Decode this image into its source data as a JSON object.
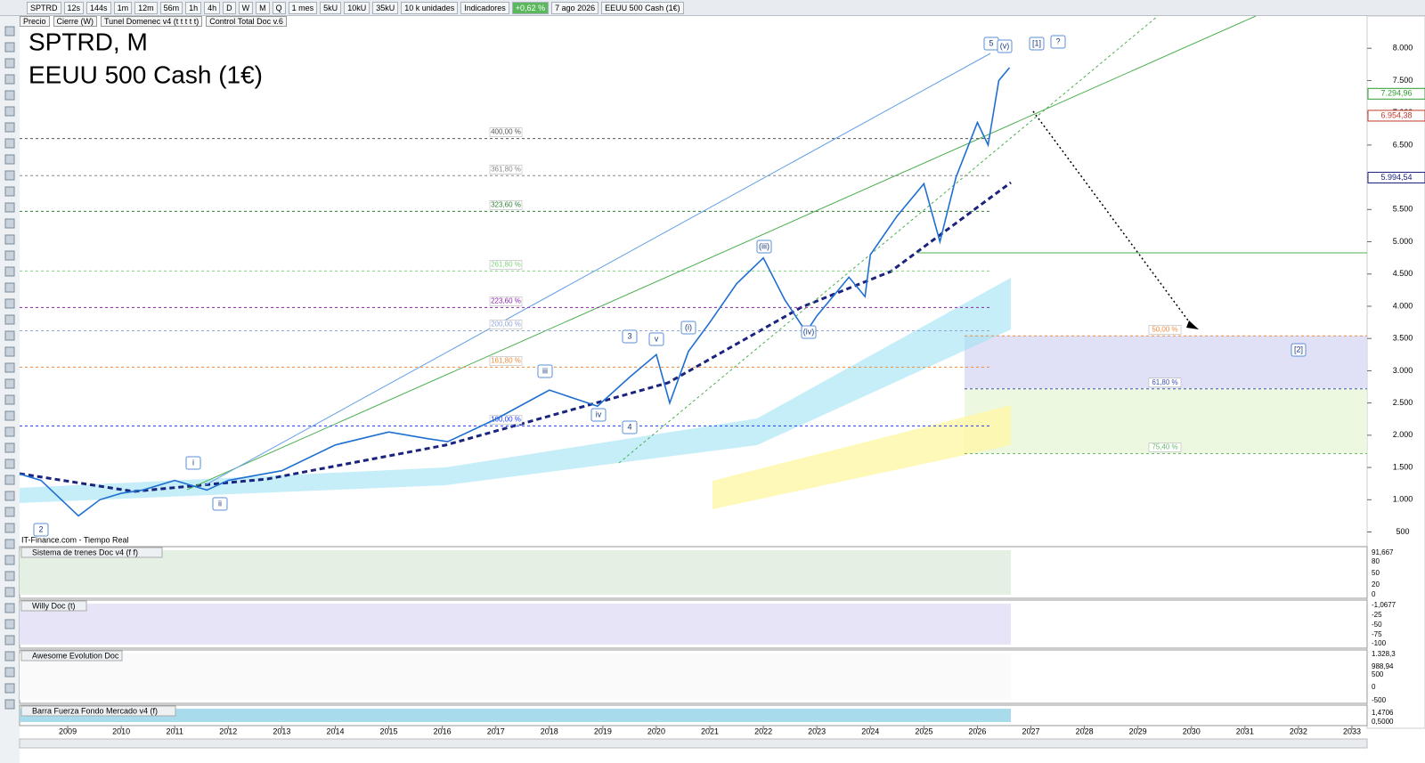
{
  "toolbar": {
    "symbol": "SPTRD",
    "timeframes": [
      "12s",
      "144s",
      "1m",
      "12m",
      "56m",
      "1h",
      "4h",
      "D",
      "W",
      "M",
      "Q"
    ],
    "period": "1 mes",
    "units": [
      "5kU",
      "10kU",
      "35kU"
    ],
    "unit_select": "10 k unidades",
    "indicators": "Indicadores",
    "change": "+0,62 %",
    "date": "7 ago 2026",
    "instrument": "EEUU 500 Cash (1€)"
  },
  "legend": [
    "Precio",
    "Cierre (W)",
    "Tunel Domenec v4 (t t t t t)",
    "Control Total Doc v.6"
  ],
  "title": {
    "symbol": "SPTRD, M",
    "name": "EEUU 500 Cash (1€)"
  },
  "source": "IT-Finance.com - Tiempo Real",
  "price_axis": {
    "ylim": [
      300,
      8500
    ],
    "yticks": [
      {
        "value": 8000,
        "label": "8.000"
      },
      {
        "value": 7500,
        "label": "7.500"
      },
      {
        "value": 7000,
        "label": "7.000"
      },
      {
        "value": 6500,
        "label": "6.500"
      },
      {
        "value": 6000,
        "label": "6.000"
      },
      {
        "value": 5500,
        "label": "5.500"
      },
      {
        "value": 5000,
        "label": "5.000"
      },
      {
        "value": 4500,
        "label": "4.500"
      },
      {
        "value": 4000,
        "label": "4.000"
      },
      {
        "value": 3500,
        "label": "3.500"
      },
      {
        "value": 3000,
        "label": "3.000"
      },
      {
        "value": 2500,
        "label": "2.500"
      },
      {
        "value": 2000,
        "label": "2.000"
      },
      {
        "value": 1500,
        "label": "1.500"
      },
      {
        "value": 1000,
        "label": "1.000"
      },
      500
    ]
  },
  "last_prices": [
    {
      "value": 7294.96,
      "label": "7.294,96",
      "color": "#2e9a2e"
    },
    {
      "value": 6954.38,
      "label": "6.954,38",
      "color": "#c0392b"
    },
    {
      "value": 5994.54,
      "label": "5.994,54",
      "color": "#1a237e"
    }
  ],
  "time_axis": {
    "xlim": [
      2008.1,
      2033.2
    ],
    "xticks": [
      2009,
      2010,
      2011,
      2012,
      2013,
      2014,
      2015,
      2016,
      2017,
      2018,
      2019,
      2020,
      2021,
      2022,
      2023,
      2024,
      2025,
      2026,
      2027,
      2028,
      2029,
      2030,
      2031,
      2032,
      2033
    ]
  },
  "price": {
    "x": [
      2008.1,
      2008.5,
      2009.2,
      2009.6,
      2010,
      2010.4,
      2011,
      2011.6,
      2012,
      2013,
      2014,
      2015,
      2015.7,
      2016.1,
      2017,
      2018,
      2018.9,
      2019.5,
      2020,
      2020.25,
      2020.6,
      2021,
      2021.5,
      2022,
      2022.4,
      2022.8,
      2023,
      2023.6,
      2023.9,
      2024,
      2024.5,
      2025,
      2025.3,
      2025.6,
      2026,
      2026.2,
      2026.4,
      2026.6
    ],
    "values": [
      1400,
      1300,
      750,
      1000,
      1100,
      1150,
      1300,
      1150,
      1300,
      1450,
      1850,
      2050,
      1950,
      1900,
      2250,
      2700,
      2450,
      2900,
      3250,
      2500,
      3300,
      3750,
      4350,
      4750,
      4100,
      3600,
      3850,
      4450,
      4150,
      4800,
      5400,
      5900,
      5000,
      6000,
      6850,
      6500,
      7500,
      7700
    ]
  },
  "fib_levels": [
    {
      "label": "400,00 %",
      "value": 6600,
      "color": "#555555"
    },
    {
      "label": "361,80 %",
      "value": 6025,
      "color": "#888888"
    },
    {
      "label": "323,60 %",
      "value": 5472,
      "color": "#2e7d32"
    },
    {
      "label": "261,80 %",
      "value": 4547,
      "color": "#7ed37e"
    },
    {
      "label": "223,60 %",
      "value": 3980,
      "color": "#8e24aa"
    },
    {
      "label": "200,00 %",
      "value": 3620,
      "color": "#90a4d8"
    },
    {
      "label": "161,80 %",
      "value": 3055,
      "color": "#ef8a3c"
    },
    {
      "label": "100,00 %",
      "value": 2144,
      "color": "#1e3cff"
    }
  ],
  "zone_levels": [
    {
      "label": "50,00 %",
      "value": 3540,
      "color": "#ef8a3c"
    },
    {
      "label": "61,80 %",
      "value": 2720,
      "color": "#3f51b5"
    },
    {
      "label": "75,40 %",
      "value": 1715,
      "color": "#66bb6a"
    }
  ],
  "wave_labels": [
    "5",
    "(v)",
    "[1]",
    "?",
    "[2]",
    "(iii)",
    "(i)",
    "v",
    "3",
    "iii",
    "iv",
    "4",
    "i",
    "ii",
    "2",
    "(iv)"
  ],
  "panes": [
    {
      "title": "Sistema de trenes Doc v4 (f f)",
      "ticks": [
        "91,667",
        "80",
        "50",
        "20",
        "0"
      ]
    },
    {
      "title": "Willy Doc (t)",
      "ticks": [
        "-1,0677",
        "-25",
        "-50",
        "-75",
        "-100"
      ]
    },
    {
      "title": "Awesome Evolution Doc",
      "ticks": [
        "1.328,3",
        "988,94",
        "500",
        "0",
        "-500"
      ]
    },
    {
      "title": "Barra Fuerza Fondo Mercado v4 (f)",
      "ticks": [
        "1,4706",
        "0,5000"
      ]
    }
  ]
}
